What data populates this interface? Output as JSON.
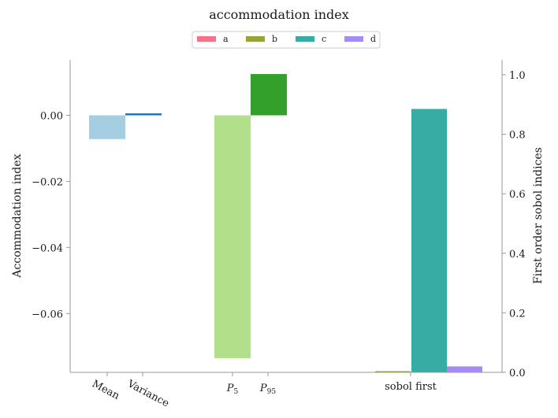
{
  "chart_data": {
    "type": "bar",
    "title": "accommodation index",
    "left_axis": {
      "label": "Accommodation index",
      "ylim": [
        -0.0778,
        0.0168
      ],
      "ticks": [
        0.0,
        -0.02,
        -0.04,
        -0.06
      ],
      "tick_labels": [
        "0.00",
        "−0.02",
        "−0.04",
        "−0.06"
      ]
    },
    "right_axis": {
      "label": "First order sobol indices",
      "ylim": [
        0.0,
        1.05
      ],
      "ticks": [
        0.0,
        0.2,
        0.4,
        0.6,
        0.8,
        1.0
      ],
      "tick_labels": [
        "0.0",
        "0.2",
        "0.4",
        "0.6",
        "0.8",
        "1.0"
      ]
    },
    "x_ticks": [
      {
        "label": "Mean",
        "sub": "",
        "rotated": true
      },
      {
        "label": "Variance",
        "sub": "",
        "rotated": true
      },
      {
        "label": "P",
        "sub": "5",
        "rotated": false
      },
      {
        "label": "P",
        "sub": "95",
        "rotated": false
      },
      {
        "label": "sobol first",
        "sub": "",
        "rotated": false
      }
    ],
    "bars": [
      {
        "group": "Mean",
        "axis": "left",
        "value": -0.0072,
        "color": "#a6cee3"
      },
      {
        "group": "Variance",
        "axis": "left",
        "value": 0.0005,
        "color": "#1f78b4"
      },
      {
        "group": "P5",
        "axis": "left",
        "value": -0.0735,
        "color": "#b2df8a"
      },
      {
        "group": "P95",
        "axis": "left",
        "value": 0.0125,
        "color": "#33a02c"
      }
    ],
    "sobol": {
      "axis": "right",
      "series": [
        {
          "name": "a",
          "value": 0.0,
          "color": "#f77189"
        },
        {
          "name": "b",
          "value": 0.004,
          "color": "#97a431"
        },
        {
          "name": "c",
          "value": 0.885,
          "color": "#36ada4"
        },
        {
          "name": "d",
          "value": 0.02,
          "color": "#a48cf4"
        }
      ]
    },
    "legend_placement": "top-center",
    "grid": false
  }
}
